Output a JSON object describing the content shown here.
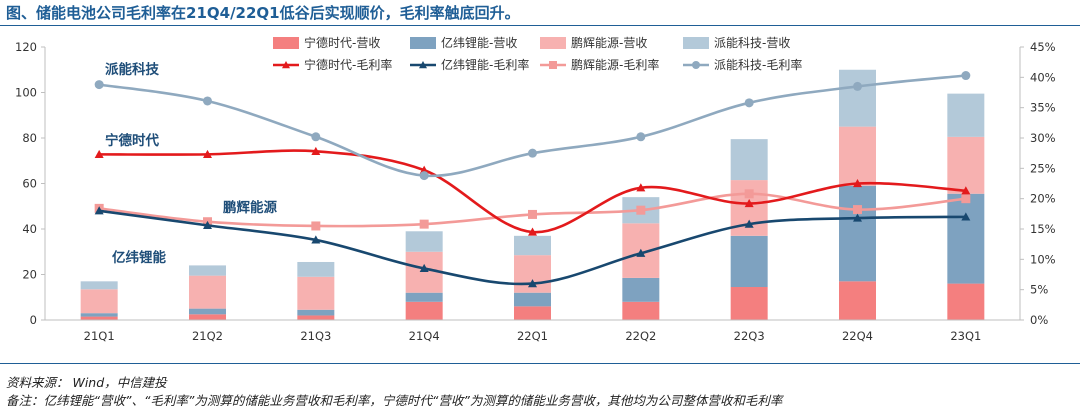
{
  "title": "图、储能电池公司毛利率在21Q4/22Q1低谷后实现顺价，毛利率触底回升。",
  "notes": {
    "source": "资料来源： Wind，中信建投",
    "remark": "备注：亿纬锂能“营收”、“毛利率”为测算的储能业务营收和毛利率，宁德时代“营收”为测算的储能业务营收，其他均为公司整体营收和毛利率"
  },
  "colors": {
    "catl_rev": "#f47f7f",
    "eve_rev": "#7ea2c0",
    "huifeng_rev": "#f7b1b0",
    "pai_rev": "#b3c9d9",
    "catl_margin": "#e31a1c",
    "eve_margin": "#18486f",
    "huifeng_margin": "#f39a98",
    "pai_margin": "#8fa9bf",
    "title": "#1f5e96"
  },
  "chart_data": {
    "type": "bar",
    "stacked": true,
    "categories": [
      "21Q1",
      "21Q2",
      "21Q3",
      "21Q4",
      "22Q1",
      "22Q2",
      "22Q3",
      "22Q4",
      "23Q1"
    ],
    "ylim": [
      0,
      120
    ],
    "yticks": [
      "0",
      "20",
      "40",
      "60",
      "80",
      "100",
      "120"
    ],
    "ylim_right": [
      0,
      45
    ],
    "yticks_right": [
      "0%",
      "5%",
      "10%",
      "15%",
      "20%",
      "25%",
      "30%",
      "35%",
      "40%",
      "45%"
    ],
    "bar_series": [
      {
        "name": "宁德时代-营收",
        "color": "#f47f7f",
        "values": [
          1.5,
          2.5,
          2,
          8,
          6,
          8,
          14.5,
          17,
          16
        ]
      },
      {
        "name": "亿纬锂能-营收",
        "color": "#7ea2c0",
        "values": [
          1.5,
          2.5,
          2.5,
          4,
          6,
          10.5,
          22.5,
          42,
          39.5
        ]
      },
      {
        "name": "鹏辉能源-营收",
        "color": "#f7b1b0",
        "values": [
          10.5,
          14.5,
          14.5,
          18,
          16.5,
          24,
          24.5,
          26,
          25
        ]
      },
      {
        "name": "派能科技-营收",
        "color": "#b3c9d9",
        "values": [
          3.5,
          4.5,
          6.5,
          9,
          8.5,
          11.5,
          18,
          25,
          19
        ]
      }
    ],
    "line_series": [
      {
        "name": "宁德时代-毛利率",
        "color": "#e31a1c",
        "marker": "triangle",
        "values": [
          27.3,
          27.3,
          27.8,
          24.7,
          14.5,
          21.8,
          19.2,
          22.5,
          21.3
        ]
      },
      {
        "name": "亿纬锂能-毛利率",
        "color": "#18486f",
        "marker": "triangle",
        "values": [
          18.0,
          15.6,
          13.2,
          8.5,
          6.0,
          11.0,
          15.8,
          16.8,
          17.0
        ]
      },
      {
        "name": "鹏辉能源-毛利率",
        "color": "#f39a98",
        "marker": "square",
        "values": [
          18.4,
          16.2,
          15.5,
          15.8,
          17.4,
          18.1,
          20.8,
          18.2,
          20.0
        ]
      },
      {
        "name": "派能科技-毛利率",
        "color": "#8fa9bf",
        "marker": "circle",
        "values": [
          38.8,
          36.1,
          30.2,
          23.8,
          27.5,
          30.2,
          35.8,
          38.5,
          40.3
        ]
      }
    ],
    "line_labels": [
      {
        "text": "派能科技"
      },
      {
        "text": "宁德时代"
      },
      {
        "text": "鹏辉能源"
      },
      {
        "text": "亿纬锂能"
      }
    ]
  }
}
